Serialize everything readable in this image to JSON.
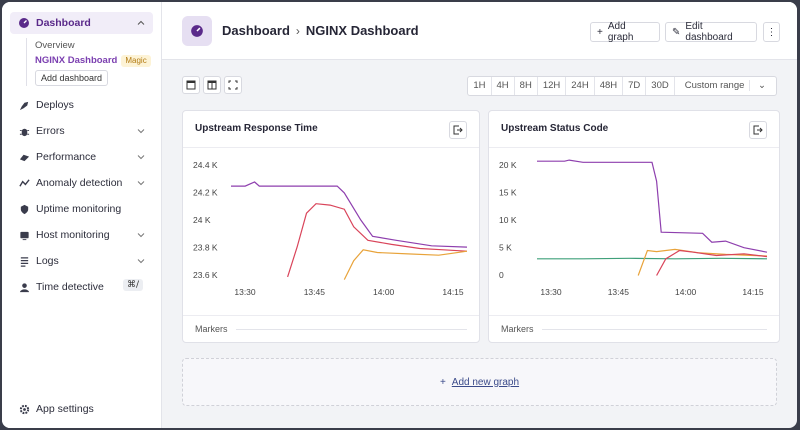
{
  "sidebar": {
    "dashboard_label": "Dashboard",
    "sub_overview": "Overview",
    "sub_nginx": "NGINX Dashboard",
    "sub_magic": "Magic",
    "add_dashboard": "Add dashboard",
    "items": [
      {
        "label": "Deploys",
        "icon": "rocket-icon"
      },
      {
        "label": "Errors",
        "icon": "bug-icon"
      },
      {
        "label": "Performance",
        "icon": "performance-icon"
      },
      {
        "label": "Anomaly detection",
        "icon": "anomaly-icon"
      },
      {
        "label": "Uptime monitoring",
        "icon": "uptime-icon"
      },
      {
        "label": "Host monitoring",
        "icon": "host-icon"
      },
      {
        "label": "Logs",
        "icon": "logs-icon"
      },
      {
        "label": "Time detective",
        "icon": "detective-icon"
      }
    ],
    "shortcut": "⌘/",
    "app_settings": "App settings"
  },
  "header": {
    "crumb1": "Dashboard",
    "sep": "›",
    "crumb2": "NGINX Dashboard",
    "add_graph": "Add graph",
    "edit_dashboard": "Edit dashboard",
    "more": "⋮"
  },
  "toolbar": {
    "ranges": [
      "1H",
      "4H",
      "8H",
      "12H",
      "24H",
      "48H",
      "7D",
      "30D"
    ],
    "custom_range": "Custom range"
  },
  "cards": {
    "markers": "Markers",
    "add_new_graph": "Add new graph"
  },
  "chart_data": [
    {
      "type": "line",
      "title": "Upstream Response Time",
      "x": [
        "13:30",
        "13:45",
        "14:00",
        "14:15"
      ],
      "yticks": [
        "24.4 K",
        "24.2 K",
        "24 K",
        "23.8 K",
        "23.6 K"
      ],
      "ylim": [
        23550,
        24450
      ],
      "series": [
        {
          "color": "#8e3fae",
          "points": [
            [
              0,
              24250
            ],
            [
              0.06,
              24250
            ],
            [
              0.1,
              24280
            ],
            [
              0.12,
              24250
            ],
            [
              0.45,
              24250
            ],
            [
              0.48,
              24200
            ],
            [
              0.55,
              24000
            ],
            [
              0.6,
              23880
            ],
            [
              0.7,
              23850
            ],
            [
              0.85,
              23810
            ],
            [
              1,
              23800
            ]
          ]
        },
        {
          "color": "#d9445a",
          "points": [
            [
              0.24,
              23580
            ],
            [
              0.28,
              23800
            ],
            [
              0.32,
              24050
            ],
            [
              0.36,
              24120
            ],
            [
              0.42,
              24110
            ],
            [
              0.48,
              24080
            ],
            [
              0.52,
              23950
            ],
            [
              0.58,
              23850
            ],
            [
              0.68,
              23820
            ],
            [
              0.8,
              23790
            ],
            [
              0.9,
              23780
            ],
            [
              1,
              23770
            ]
          ]
        },
        {
          "color": "#e8a33a",
          "points": [
            [
              0.48,
              23560
            ],
            [
              0.52,
              23700
            ],
            [
              0.56,
              23780
            ],
            [
              0.62,
              23760
            ],
            [
              0.75,
              23750
            ],
            [
              0.88,
              23740
            ],
            [
              1,
              23770
            ]
          ]
        }
      ]
    },
    {
      "type": "line",
      "title": "Upstream Status Code",
      "x": [
        "13:30",
        "13:45",
        "14:00",
        "14:15"
      ],
      "yticks": [
        "20 K",
        "15 K",
        "10 K",
        "5 K",
        "0"
      ],
      "ylim": [
        -1000,
        21000
      ],
      "series": [
        {
          "color": "#8e3fae",
          "points": [
            [
              0,
              20600
            ],
            [
              0.12,
              20600
            ],
            [
              0.14,
              20800
            ],
            [
              0.2,
              20400
            ],
            [
              0.5,
              20400
            ],
            [
              0.52,
              17000
            ],
            [
              0.54,
              7800
            ],
            [
              0.72,
              7600
            ],
            [
              0.76,
              6000
            ],
            [
              0.82,
              6200
            ],
            [
              0.9,
              5000
            ],
            [
              1,
              4200
            ]
          ]
        },
        {
          "color": "#3fa07a",
          "points": [
            [
              0,
              3000
            ],
            [
              0.2,
              3000
            ],
            [
              0.4,
              3100
            ],
            [
              0.6,
              3000
            ],
            [
              0.8,
              3100
            ],
            [
              1,
              3000
            ]
          ]
        },
        {
          "color": "#e8a33a",
          "points": [
            [
              0.44,
              0
            ],
            [
              0.48,
              4500
            ],
            [
              0.52,
              4300
            ],
            [
              0.6,
              4700
            ],
            [
              0.7,
              4100
            ],
            [
              0.82,
              3800
            ],
            [
              1,
              3500
            ]
          ]
        },
        {
          "color": "#d9445a",
          "points": [
            [
              0.52,
              0
            ],
            [
              0.56,
              3000
            ],
            [
              0.62,
              4500
            ],
            [
              0.68,
              4200
            ],
            [
              0.78,
              3600
            ],
            [
              0.9,
              3900
            ],
            [
              1,
              3400
            ]
          ]
        }
      ]
    }
  ]
}
